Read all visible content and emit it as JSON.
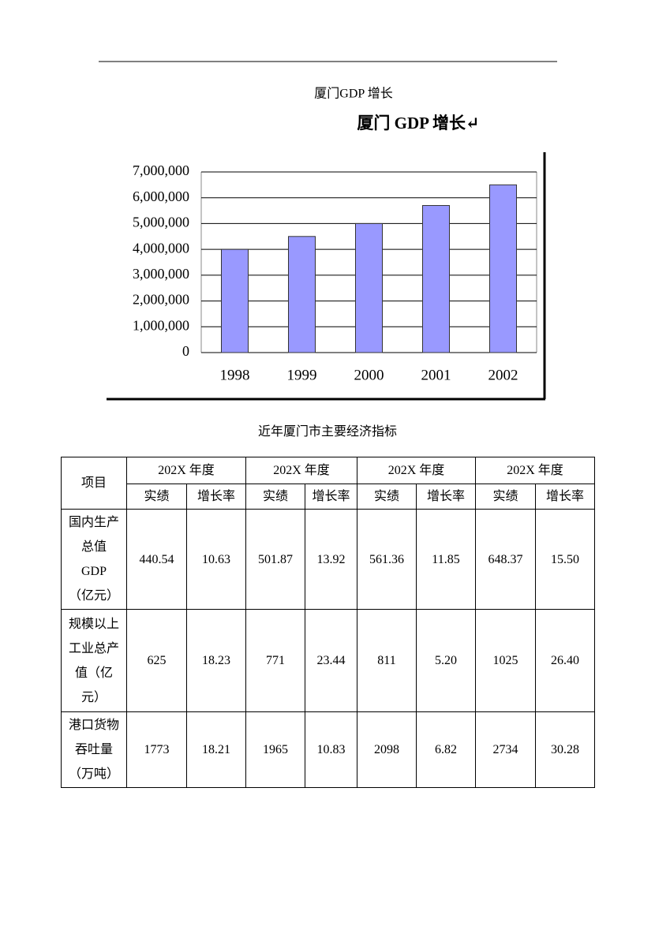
{
  "header": {
    "caption": "厦门GDP  增长"
  },
  "chart_data": {
    "type": "bar",
    "title": "厦门 GDP  增长↵",
    "categories": [
      "1998",
      "1999",
      "2000",
      "2001",
      "2002"
    ],
    "values": [
      4000000,
      4500000,
      5000000,
      5700000,
      6500000
    ],
    "color": "#9999ff",
    "ylim": [
      0,
      7000000
    ],
    "yticks": [
      0,
      {
        "value": 1000000,
        "label": "1,000,000"
      },
      {
        "value": 2000000,
        "label": "2,000,000"
      },
      {
        "value": 3000000,
        "label": "3,000,000"
      },
      {
        "value": 4000000,
        "label": "4,000,000"
      },
      {
        "value": 5000000,
        "label": "5,000,000"
      },
      {
        "value": 6000000,
        "label": "6,000,000"
      },
      {
        "value": 7000000,
        "label": "7,000,000"
      }
    ],
    "grid": true
  },
  "table": {
    "caption": "近年厦门市主要经济指标",
    "item_header": "项目",
    "years": [
      "202X 年度",
      "202X 年度",
      "202X 年度",
      "202X 年度"
    ],
    "sub_headers": [
      "实绩",
      "增长率"
    ],
    "rows": [
      {
        "label": [
          "国内生产",
          "总值",
          "GDP",
          "（亿元）"
        ],
        "cells": [
          "440.54",
          "10.63",
          "501.87",
          "13.92",
          "561.36",
          "11.85",
          "648.37",
          "15.50"
        ]
      },
      {
        "label": [
          "规模以上",
          "工业总产",
          "值（亿",
          "元）"
        ],
        "cells": [
          "625",
          "18.23",
          "771",
          "23.44",
          "811",
          "5.20",
          "1025",
          "26.40"
        ]
      },
      {
        "label": [
          "港口货物",
          "吞吐量",
          "（万吨）"
        ],
        "cells": [
          "1773",
          "18.21",
          "1965",
          "10.83",
          "2098",
          "6.82",
          "2734",
          "30.28"
        ]
      }
    ]
  }
}
